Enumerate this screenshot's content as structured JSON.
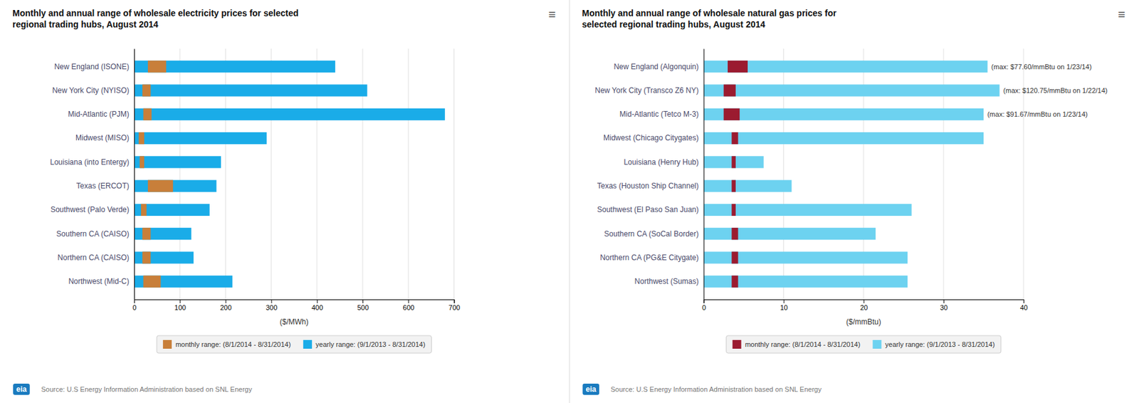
{
  "chart_data": [
    {
      "type": "bar",
      "orientation": "horizontal",
      "title": "Monthly and annual range of wholesale electricity prices for selected\nregional trading hubs, August 2014",
      "x_label": "($/MWh)",
      "categories": [
        "New England (ISONE)",
        "New York City (NYISO)",
        "Mid-Atlantic (PJM)",
        "Midwest (MISO)",
        "Louisiana (into Entergy)",
        "Texas (ERCOT)",
        "Southwest (Palo Verde)",
        "Southern CA (CAISO)",
        "Northern CA (CAISO)",
        "Northwest (Mid-C)"
      ],
      "series": [
        {
          "name": "monthly range: (8/1/2014 - 8/31/2014)",
          "color": "#C87F3A",
          "values": [
            40,
            18,
            18,
            12,
            10,
            55,
            12,
            18,
            18,
            38
          ],
          "base": [
            30,
            18,
            20,
            10,
            12,
            30,
            15,
            18,
            18,
            20
          ]
        },
        {
          "name": "yearly range: (9/1/2013 - 8/31/2014)",
          "color": "#1AACE8",
          "values": [
            440,
            510,
            680,
            290,
            190,
            180,
            165,
            125,
            130,
            215
          ]
        }
      ],
      "xlim": [
        0,
        700
      ],
      "xticks": [
        0,
        100,
        200,
        300,
        400,
        500,
        600,
        700
      ],
      "grid": true,
      "legend": "bottom",
      "menu": "≡",
      "logo": "eia",
      "source": "Source: U.S Energy Information Administration based on SNL Energy"
    },
    {
      "type": "bar",
      "orientation": "horizontal",
      "title": "Monthly and annual range of wholesale natural gas prices for\nselected regional trading hubs, August 2014",
      "x_label": "($/mmBtu)",
      "categories": [
        "New England (Algonquin)",
        "New York City (Transco Z6 NY)",
        "Mid-Atlantic (Tetco M-3)",
        "Midwest (Chicago Citygates)",
        "Louisiana (Henry Hub)",
        "Texas (Houston Ship Channel)",
        "Southwest (El Paso San Juan)",
        "Southern CA (SoCal Border)",
        "Northern CA (PG&E Citygate)",
        "Northwest (Sumas)"
      ],
      "series": [
        {
          "name": "monthly range: (8/1/2014 - 8/31/2014)",
          "color": "#9B1B30",
          "values": [
            2.5,
            1.5,
            2.0,
            0.8,
            0.5,
            0.5,
            0.5,
            0.8,
            0.8,
            0.8
          ],
          "base": [
            3.0,
            2.5,
            2.5,
            3.5,
            3.5,
            3.5,
            3.5,
            3.5,
            3.5,
            3.5
          ]
        },
        {
          "name": "yearly range: (9/1/2013 - 8/31/2014)",
          "color": "#6DD2F0",
          "values": [
            35.5,
            37.0,
            35.0,
            35.0,
            7.5,
            11.0,
            26.0,
            21.5,
            25.5,
            25.5
          ]
        }
      ],
      "annotations": [
        "(max: $77.60/mmBtu on 1/23/14)",
        "(max: $120.75/mmBtu on 1/22/14)",
        "(max: $91.67/mmBtu on 1/23/14)",
        null,
        null,
        null,
        null,
        null,
        null,
        null
      ],
      "xlim": [
        0,
        40
      ],
      "xticks": [
        0,
        10,
        20,
        30,
        40
      ],
      "grid": true,
      "legend": "bottom",
      "menu": "≡",
      "logo": "eia",
      "source": "Source: U.S Energy Information Administration based on SNL Energy"
    }
  ]
}
